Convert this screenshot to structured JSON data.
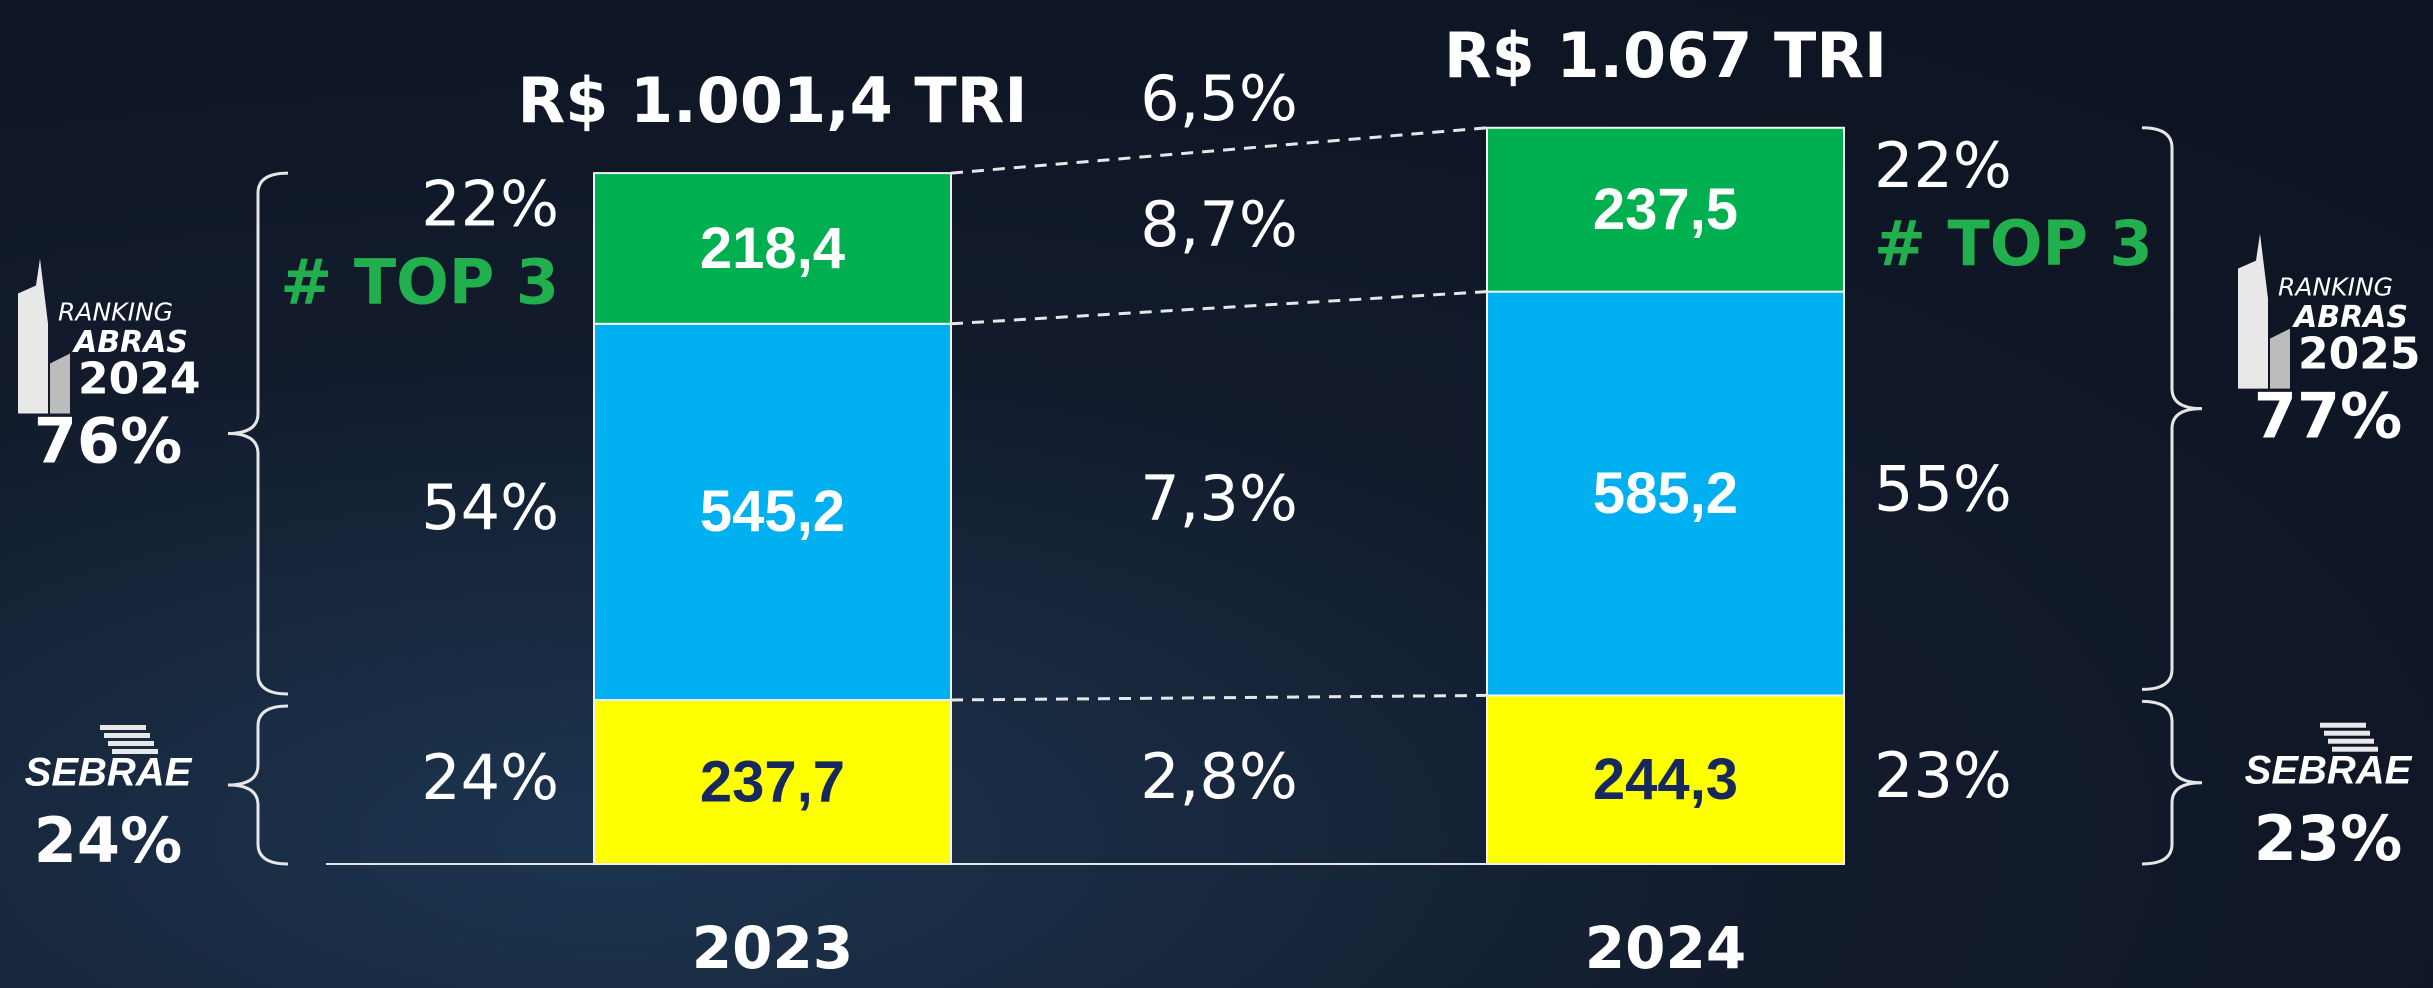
{
  "chart_data": {
    "type": "stacked_bar",
    "categories": [
      "2023",
      "2024"
    ],
    "totals": [
      1001.4,
      1067
    ],
    "total_labels": [
      "R$ 1.001,4 TRI",
      "R$ 1.067 TRI"
    ],
    "total_growth": 6.5,
    "total_growth_label": "6,5%",
    "series": [
      {
        "color": "#ffff00",
        "label_color": "#16285c",
        "values": [
          237.7,
          244.3
        ],
        "value_labels": [
          "237,7",
          "244,3"
        ],
        "shares": [
          24,
          23
        ],
        "share_labels": [
          "24%",
          "23%"
        ],
        "growth": 2.8,
        "growth_label": "2,8%"
      },
      {
        "color": "#00b0f0",
        "label_color": "#ffffff",
        "values": [
          545.2,
          585.2
        ],
        "value_labels": [
          "545,2",
          "585,2"
        ],
        "shares": [
          54,
          55
        ],
        "share_labels": [
          "54%",
          "55%"
        ],
        "growth": 7.3,
        "growth_label": "7,3%"
      },
      {
        "color": "#00b050",
        "label_color": "#ffffff",
        "values": [
          218.4,
          237.5
        ],
        "value_labels": [
          "218,4",
          "237,5"
        ],
        "shares": [
          22,
          22
        ],
        "share_labels": [
          "22%",
          "22%"
        ],
        "growth": 8.7,
        "growth_label": "8,7%",
        "tags": [
          "# TOP 3",
          "# TOP 3"
        ]
      }
    ],
    "brackets": [
      {
        "side": "left",
        "logo": [
          "RANKING",
          "ABRAS",
          "2024"
        ],
        "share": 76,
        "share_label": "76%"
      },
      {
        "side": "left",
        "logo": [
          "SEBRAE"
        ],
        "share": 24,
        "share_label": "24%"
      },
      {
        "side": "right",
        "logo": [
          "RANKING",
          "ABRAS",
          "2025"
        ],
        "share": 77,
        "share_label": "77%"
      },
      {
        "side": "right",
        "logo": [
          "SEBRAE"
        ],
        "share": 23,
        "share_label": "23%"
      }
    ]
  }
}
